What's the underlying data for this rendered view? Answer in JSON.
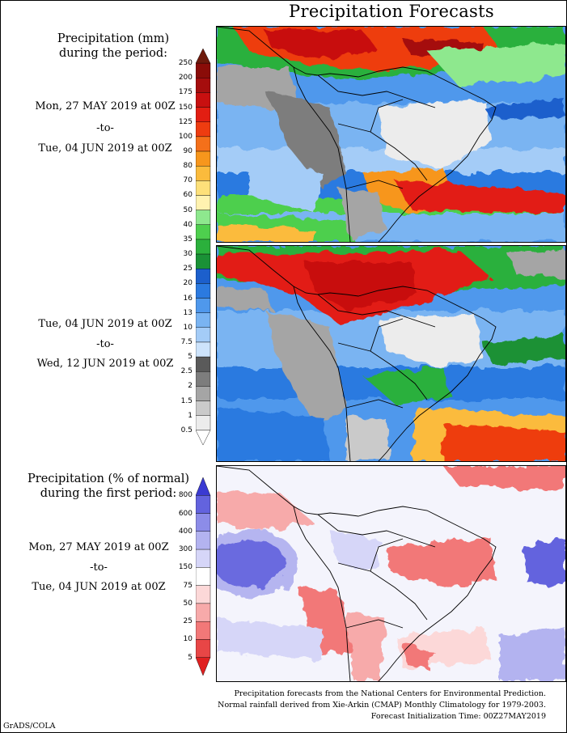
{
  "title": "Precipitation Forecasts",
  "section1": {
    "heading_line1": "Precipitation (mm)",
    "heading_line2": "during the period:",
    "period1": {
      "start": "Mon, 27 MAY 2019 at 00Z",
      "sep": "-to-",
      "end": "Tue, 04 JUN 2019 at 00Z"
    },
    "period2": {
      "start": "Tue, 04 JUN 2019 at 00Z",
      "sep": "-to-",
      "end": "Wed, 12 JUN 2019 at 00Z"
    }
  },
  "section2": {
    "heading_line1": "Precipitation (% of normal)",
    "heading_line2": "during the first period:",
    "period": {
      "start": "Mon, 27 MAY 2019 at 00Z",
      "sep": "-to-",
      "end": "Tue, 04 JUN 2019 at 00Z"
    }
  },
  "mm_scale": {
    "ticks": [
      "250",
      "200",
      "175",
      "150",
      "125",
      "100",
      "90",
      "80",
      "70",
      "60",
      "50",
      "40",
      "35",
      "30",
      "25",
      "20",
      "16",
      "13",
      "10",
      "7.5",
      "5",
      "2.5",
      "2",
      "1.5",
      "1",
      "0.5"
    ],
    "colors": [
      "#6e1a0c",
      "#8a0c08",
      "#a50d0d",
      "#c81010",
      "#e21e12",
      "#ee3c10",
      "#f4701a",
      "#f7961c",
      "#fbbb3c",
      "#fde07a",
      "#fff2b0",
      "#8ee88e",
      "#4ecf4e",
      "#2bb03c",
      "#1a9136",
      "#1c5fcc",
      "#2b7ae0",
      "#4f98ec",
      "#7ab4f2",
      "#a4ccf7",
      "#cde3fb",
      "#5a5a5a",
      "#7d7d7d",
      "#a5a5a5",
      "#cacaca",
      "#ececec",
      "#ffffff"
    ]
  },
  "pct_scale": {
    "ticks": [
      "800",
      "600",
      "400",
      "300",
      "150",
      "75",
      "50",
      "25",
      "10",
      "5"
    ],
    "colors": [
      "#3a3ad2",
      "#6363de",
      "#8c8ce8",
      "#b3b3f0",
      "#d6d6f8",
      "#ffffff",
      "#fcd8d8",
      "#f7aaaa",
      "#f27878",
      "#e84646",
      "#e02020"
    ]
  },
  "footer": {
    "line1": "Precipitation forecasts from the National Centers for Environmental Prediction.",
    "line2": "Normal rainfall derived from Xie-Arkin (CMAP) Monthly Climatology for 1979-2003.",
    "line3": "Forecast Initialization Time: 00Z27MAY2019"
  },
  "credit": "GrADS/COLA"
}
